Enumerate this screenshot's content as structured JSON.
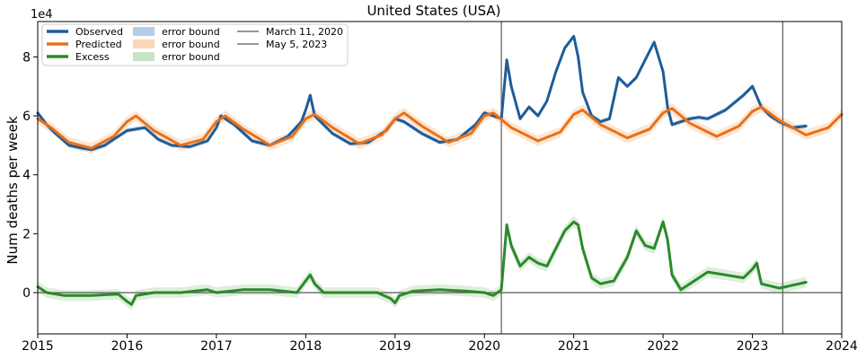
{
  "chart_data": {
    "type": "line",
    "title": "United States (USA)",
    "xlabel": "",
    "ylabel": "Num deaths per week",
    "y_scale_label": "1e4",
    "xlim": [
      2015.0,
      2024.0
    ],
    "ylim": [
      -1.4,
      9.2
    ],
    "x_ticks": [
      2015,
      2016,
      2017,
      2018,
      2019,
      2020,
      2021,
      2022,
      2023,
      2024
    ],
    "x_tick_labels": [
      "2015",
      "2016",
      "2017",
      "2018",
      "2019",
      "2020",
      "2021",
      "2022",
      "2023",
      "2024"
    ],
    "y_ticks": [
      0,
      2,
      4,
      6,
      8
    ],
    "y_tick_labels": [
      "0",
      "2",
      "4",
      "6",
      "8"
    ],
    "legend": {
      "placement": "top-left",
      "entries": [
        {
          "label": "Observed",
          "kind": "line",
          "color": "#1f5c99"
        },
        {
          "label": "Predicted",
          "kind": "line",
          "color": "#e8711a"
        },
        {
          "label": "Excess",
          "kind": "line",
          "color": "#2a8a2a"
        },
        {
          "label": "error bound",
          "kind": "patch",
          "color": "#b8cce8"
        },
        {
          "label": "error bound",
          "kind": "patch",
          "color": "#fbd6b4"
        },
        {
          "label": "error bound",
          "kind": "patch",
          "color": "#c8e3c4"
        },
        {
          "label": "March 11, 2020",
          "kind": "line",
          "color": "#777777"
        },
        {
          "label": "May 5, 2023",
          "kind": "line",
          "color": "#777777"
        }
      ]
    },
    "vertical_lines": [
      2020.19,
      2023.34
    ],
    "horizontal_lines": [
      0
    ],
    "series": [
      {
        "name": "Observed",
        "color": "#1f5c99",
        "x": [
          2015.0,
          2015.1,
          2015.2,
          2015.35,
          2015.5,
          2015.6,
          2015.75,
          2015.9,
          2016.0,
          2016.2,
          2016.35,
          2016.5,
          2016.7,
          2016.9,
          2017.0,
          2017.05,
          2017.2,
          2017.4,
          2017.6,
          2017.8,
          2017.95,
          2018.0,
          2018.05,
          2018.1,
          2018.3,
          2018.5,
          2018.7,
          2018.9,
          2019.0,
          2019.1,
          2019.3,
          2019.5,
          2019.7,
          2019.9,
          2020.0,
          2020.1,
          2020.19,
          2020.25,
          2020.3,
          2020.4,
          2020.5,
          2020.6,
          2020.7,
          2020.8,
          2020.9,
          2021.0,
          2021.05,
          2021.1,
          2021.2,
          2021.3,
          2021.4,
          2021.5,
          2021.6,
          2021.7,
          2021.8,
          2021.9,
          2022.0,
          2022.05,
          2022.1,
          2022.2,
          2022.3,
          2022.4,
          2022.5,
          2022.7,
          2022.9,
          2023.0,
          2023.1,
          2023.2,
          2023.3,
          2023.45,
          2023.6
        ],
        "values": [
          6.1,
          5.7,
          5.4,
          5.0,
          4.9,
          4.85,
          5.0,
          5.3,
          5.5,
          5.6,
          5.2,
          5.0,
          4.95,
          5.15,
          5.6,
          6.0,
          5.7,
          5.15,
          5.0,
          5.3,
          5.8,
          6.2,
          6.7,
          6.0,
          5.4,
          5.05,
          5.1,
          5.5,
          5.9,
          5.8,
          5.4,
          5.1,
          5.2,
          5.7,
          6.1,
          6.0,
          5.9,
          7.9,
          7.0,
          5.9,
          6.3,
          6.0,
          6.5,
          7.5,
          8.3,
          8.7,
          8.0,
          6.8,
          6.0,
          5.8,
          5.9,
          7.3,
          7.0,
          7.3,
          7.9,
          8.5,
          7.5,
          6.3,
          5.7,
          5.8,
          5.9,
          5.95,
          5.9,
          6.2,
          6.7,
          7.0,
          6.3,
          6.0,
          5.8,
          5.6,
          5.65
        ]
      },
      {
        "name": "Predicted",
        "color": "#e8711a",
        "x": [
          2015.0,
          2015.15,
          2015.35,
          2015.6,
          2015.85,
          2016.0,
          2016.1,
          2016.3,
          2016.6,
          2016.85,
          2017.0,
          2017.1,
          2017.3,
          2017.6,
          2017.85,
          2018.0,
          2018.1,
          2018.3,
          2018.6,
          2018.85,
          2019.0,
          2019.1,
          2019.3,
          2019.6,
          2019.85,
          2020.0,
          2020.1,
          2020.3,
          2020.6,
          2020.85,
          2021.0,
          2021.1,
          2021.3,
          2021.6,
          2021.85,
          2022.0,
          2022.1,
          2022.3,
          2022.6,
          2022.85,
          2023.0,
          2023.1,
          2023.3,
          2023.6,
          2023.85,
          2024.0
        ],
        "values": [
          5.9,
          5.6,
          5.1,
          4.9,
          5.3,
          5.8,
          6.0,
          5.5,
          5.0,
          5.2,
          5.8,
          6.0,
          5.55,
          5.0,
          5.3,
          5.9,
          6.05,
          5.6,
          5.05,
          5.35,
          5.9,
          6.1,
          5.65,
          5.1,
          5.4,
          6.0,
          6.1,
          5.6,
          5.15,
          5.45,
          6.05,
          6.2,
          5.7,
          5.25,
          5.55,
          6.1,
          6.25,
          5.75,
          5.3,
          5.65,
          6.15,
          6.3,
          5.85,
          5.35,
          5.6,
          6.05
        ]
      },
      {
        "name": "Excess",
        "color": "#2a8a2a",
        "x": [
          2015.0,
          2015.1,
          2015.3,
          2015.6,
          2015.9,
          2016.0,
          2016.05,
          2016.1,
          2016.3,
          2016.6,
          2016.9,
          2017.0,
          2017.3,
          2017.6,
          2017.9,
          2018.0,
          2018.05,
          2018.1,
          2018.2,
          2018.5,
          2018.8,
          2018.95,
          2019.0,
          2019.05,
          2019.2,
          2019.5,
          2019.8,
          2020.0,
          2020.1,
          2020.19,
          2020.25,
          2020.3,
          2020.4,
          2020.5,
          2020.6,
          2020.7,
          2020.8,
          2020.9,
          2021.0,
          2021.05,
          2021.1,
          2021.2,
          2021.3,
          2021.45,
          2021.6,
          2021.7,
          2021.8,
          2021.9,
          2022.0,
          2022.05,
          2022.1,
          2022.2,
          2022.3,
          2022.5,
          2022.7,
          2022.9,
          2023.0,
          2023.05,
          2023.1,
          2023.3,
          2023.45,
          2023.6
        ],
        "values": [
          0.2,
          0.0,
          -0.1,
          -0.1,
          -0.05,
          -0.3,
          -0.4,
          -0.1,
          0.0,
          0.0,
          0.1,
          0.0,
          0.1,
          0.1,
          0.0,
          0.4,
          0.6,
          0.3,
          0.0,
          0.0,
          0.0,
          -0.2,
          -0.35,
          -0.1,
          0.05,
          0.1,
          0.05,
          0.0,
          -0.1,
          0.1,
          2.3,
          1.6,
          0.9,
          1.2,
          1.0,
          0.9,
          1.5,
          2.1,
          2.4,
          2.3,
          1.5,
          0.5,
          0.3,
          0.4,
          1.2,
          2.1,
          1.6,
          1.5,
          2.4,
          1.8,
          0.6,
          0.1,
          0.3,
          0.7,
          0.6,
          0.5,
          0.8,
          1.0,
          0.3,
          0.15,
          0.25,
          0.35
        ]
      }
    ]
  }
}
